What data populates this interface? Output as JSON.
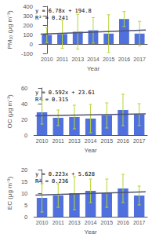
{
  "chart_data": [
    {
      "type": "bar",
      "categories": [
        "2010",
        "2011",
        "2013",
        "2014",
        "2015",
        "2016",
        "2017"
      ],
      "values": [
        95,
        105,
        130,
        145,
        110,
        265,
        110
      ],
      "errors": [
        80,
        150,
        185,
        135,
        200,
        80,
        130
      ],
      "trend": [
        105,
        148
      ],
      "xlabel": "Year",
      "ylabel": "PM₁₀ (μg m⁻³)",
      "annotations": [
        "y = 6.78x + 194.8",
        "R² = 0.241"
      ],
      "ylim": [
        -100,
        400
      ],
      "yticks": [
        -100,
        0,
        100,
        200,
        300,
        400
      ],
      "grid": false
    },
    {
      "type": "bar",
      "categories": [
        "2010",
        "2011",
        "2013",
        "2014",
        "2015",
        "2016",
        "2017"
      ],
      "values": [
        29,
        22,
        23,
        21,
        25,
        32,
        26
      ],
      "errors": [
        15,
        10,
        15,
        18,
        16,
        20,
        14
      ],
      "trend": [
        24.5,
        27.0
      ],
      "xlabel": "Year",
      "ylabel": "OC (μg m⁻³)",
      "annotations": [
        "y = 0.592x + 23.61",
        "R² = 0.315"
      ],
      "ylim": [
        0,
        60
      ],
      "yticks": [
        0,
        20,
        40,
        60
      ],
      "grid": false
    },
    {
      "type": "bar",
      "categories": [
        "2010",
        "2011",
        "2013",
        "2014",
        "2015",
        "2016",
        "2017"
      ],
      "values": [
        8,
        9,
        10,
        11,
        10,
        12,
        9
      ],
      "errors": [
        6,
        5,
        7,
        5,
        6,
        6,
        4
      ],
      "trend": [
        9.2,
        10.6
      ],
      "xlabel": "Year",
      "ylabel": "EC (μg m⁻³)",
      "annotations": [
        "y = 0.223x + 5.628",
        "R² = 0.236"
      ],
      "ylim": [
        0,
        20
      ],
      "yticks": [
        0,
        5,
        10,
        15,
        20
      ],
      "grid": false
    }
  ]
}
